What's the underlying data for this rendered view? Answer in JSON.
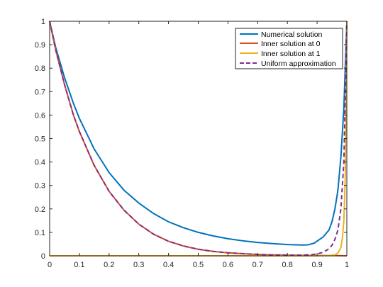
{
  "chart_data": {
    "type": "line",
    "title": "",
    "xlabel": "",
    "ylabel": "",
    "xlim": [
      0,
      1
    ],
    "ylim": [
      0,
      1
    ],
    "grid": false,
    "legend_position": "top-right",
    "x_ticks": [
      "0",
      "0.1",
      "0.2",
      "0.3",
      "0.4",
      "0.5",
      "0.6",
      "0.7",
      "0.8",
      "0.9",
      "1"
    ],
    "y_ticks": [
      "0",
      "0.1",
      "0.2",
      "0.3",
      "0.4",
      "0.5",
      "0.6",
      "0.7",
      "0.8",
      "0.9",
      "1"
    ],
    "series": [
      {
        "name": "Numerical solution",
        "color": "#0072BD",
        "style": "solid",
        "x": [
          0,
          0.02,
          0.05,
          0.08,
          0.1,
          0.15,
          0.2,
          0.25,
          0.3,
          0.35,
          0.4,
          0.45,
          0.5,
          0.55,
          0.6,
          0.65,
          0.7,
          0.75,
          0.8,
          0.85,
          0.87,
          0.89,
          0.9,
          0.92,
          0.94,
          0.95,
          0.96,
          0.97,
          0.98,
          0.99,
          1
        ],
        "y": [
          1,
          0.89,
          0.76,
          0.65,
          0.586,
          0.455,
          0.355,
          0.28,
          0.225,
          0.18,
          0.145,
          0.12,
          0.1,
          0.085,
          0.073,
          0.064,
          0.057,
          0.052,
          0.048,
          0.046,
          0.047,
          0.054,
          0.063,
          0.08,
          0.11,
          0.145,
          0.2,
          0.28,
          0.42,
          0.63,
          1
        ]
      },
      {
        "name": "Inner solution at 0",
        "color": "#D95319",
        "style": "solid",
        "x": [
          0,
          0.02,
          0.05,
          0.08,
          0.1,
          0.15,
          0.2,
          0.25,
          0.3,
          0.35,
          0.4,
          0.45,
          0.5,
          0.55,
          0.6,
          0.65,
          0.7,
          0.75,
          0.8,
          0.85,
          0.9,
          0.95,
          1
        ],
        "y": [
          1,
          0.88,
          0.73,
          0.6,
          0.53,
          0.385,
          0.275,
          0.195,
          0.135,
          0.092,
          0.062,
          0.042,
          0.028,
          0.019,
          0.013,
          0.009,
          0.006,
          0.004,
          0.003,
          0.002,
          0.001,
          0.001,
          0
        ]
      },
      {
        "name": "Inner solution at 1",
        "color": "#EDB120",
        "style": "solid",
        "x": [
          0,
          0.5,
          0.8,
          0.9,
          0.94,
          0.96,
          0.97,
          0.98,
          0.985,
          0.99,
          0.995,
          1
        ],
        "y": [
          0,
          0,
          0,
          0,
          0.001,
          0.004,
          0.012,
          0.035,
          0.075,
          0.15,
          0.35,
          1
        ]
      },
      {
        "name": "Uniform approximation",
        "color": "#7E2F8E",
        "style": "dashed",
        "x": [
          0,
          0.02,
          0.05,
          0.08,
          0.1,
          0.15,
          0.2,
          0.25,
          0.3,
          0.35,
          0.4,
          0.45,
          0.5,
          0.55,
          0.6,
          0.65,
          0.7,
          0.75,
          0.8,
          0.85,
          0.88,
          0.9,
          0.92,
          0.94,
          0.95,
          0.96,
          0.97,
          0.98,
          0.99,
          1
        ],
        "y": [
          1,
          0.88,
          0.73,
          0.6,
          0.53,
          0.385,
          0.275,
          0.195,
          0.135,
          0.092,
          0.062,
          0.042,
          0.028,
          0.019,
          0.013,
          0.009,
          0.006,
          0.004,
          0.003,
          0.003,
          0.005,
          0.008,
          0.015,
          0.03,
          0.045,
          0.07,
          0.11,
          0.2,
          0.4,
          1
        ]
      }
    ]
  }
}
